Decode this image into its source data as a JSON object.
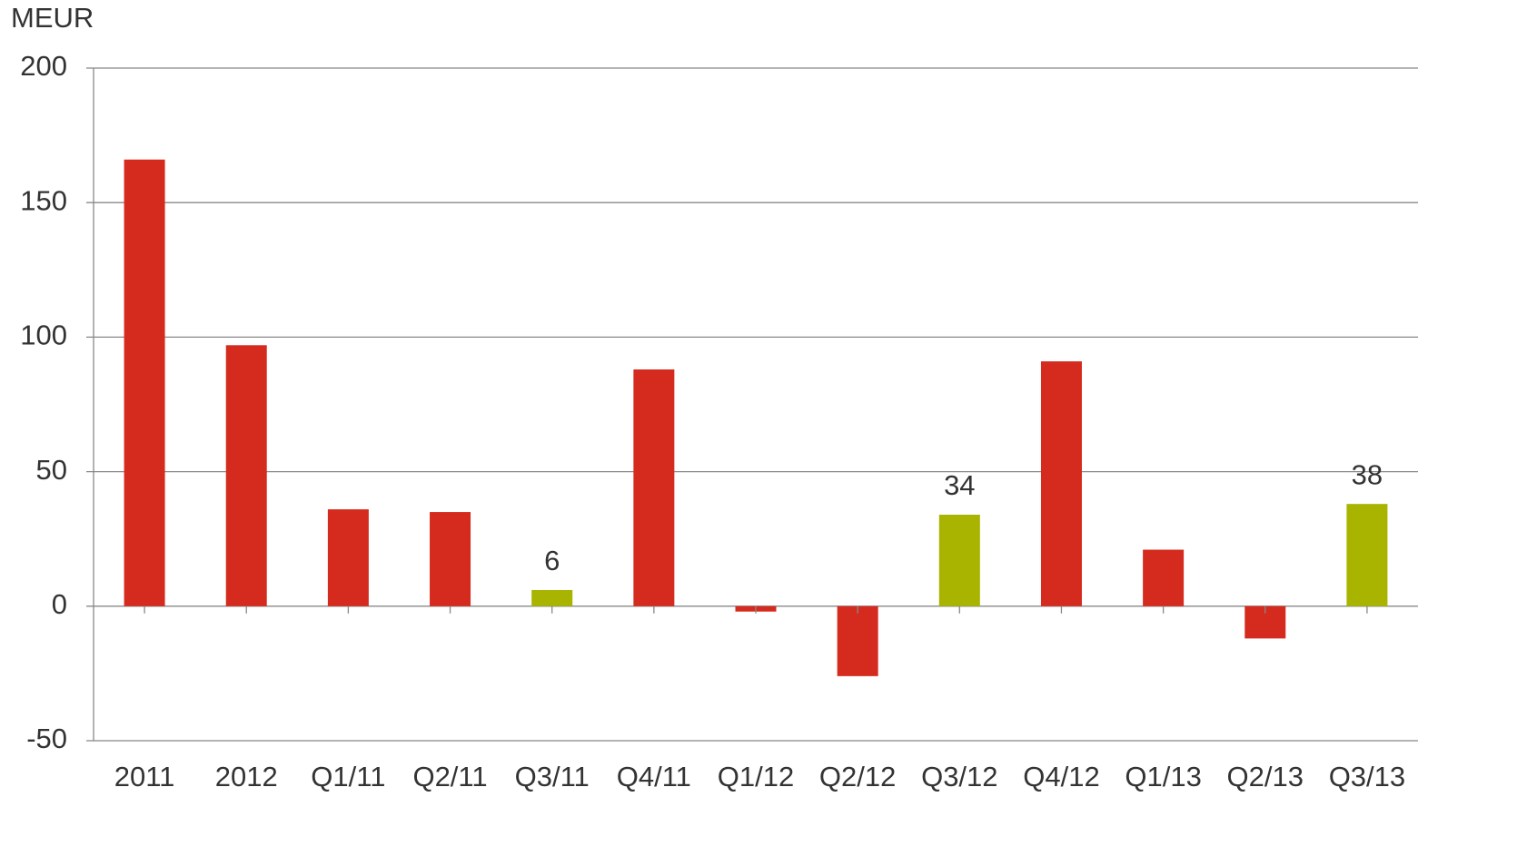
{
  "chart_data": {
    "type": "bar",
    "y_label": "MEUR",
    "categories": [
      "2011",
      "2012",
      "Q1/11",
      "Q2/11",
      "Q3/11",
      "Q4/11",
      "Q1/12",
      "Q2/12",
      "Q3/12",
      "Q4/12",
      "Q1/13",
      "Q2/13",
      "Q3/13"
    ],
    "values": [
      166,
      97,
      36,
      35,
      6,
      88,
      -2,
      -26,
      34,
      91,
      21,
      -12,
      38
    ],
    "value_labels": [
      null,
      null,
      null,
      null,
      "6",
      null,
      null,
      null,
      "34",
      null,
      null,
      null,
      "38"
    ],
    "colors": [
      "#d52b1e",
      "#d52b1e",
      "#d52b1e",
      "#d52b1e",
      "#a8b400",
      "#d52b1e",
      "#d52b1e",
      "#d52b1e",
      "#a8b400",
      "#d52b1e",
      "#d52b1e",
      "#d52b1e",
      "#a8b400"
    ],
    "ylim": [
      -50,
      200
    ],
    "yticks": [
      -50,
      0,
      50,
      100,
      150,
      200
    ],
    "grid": true
  }
}
